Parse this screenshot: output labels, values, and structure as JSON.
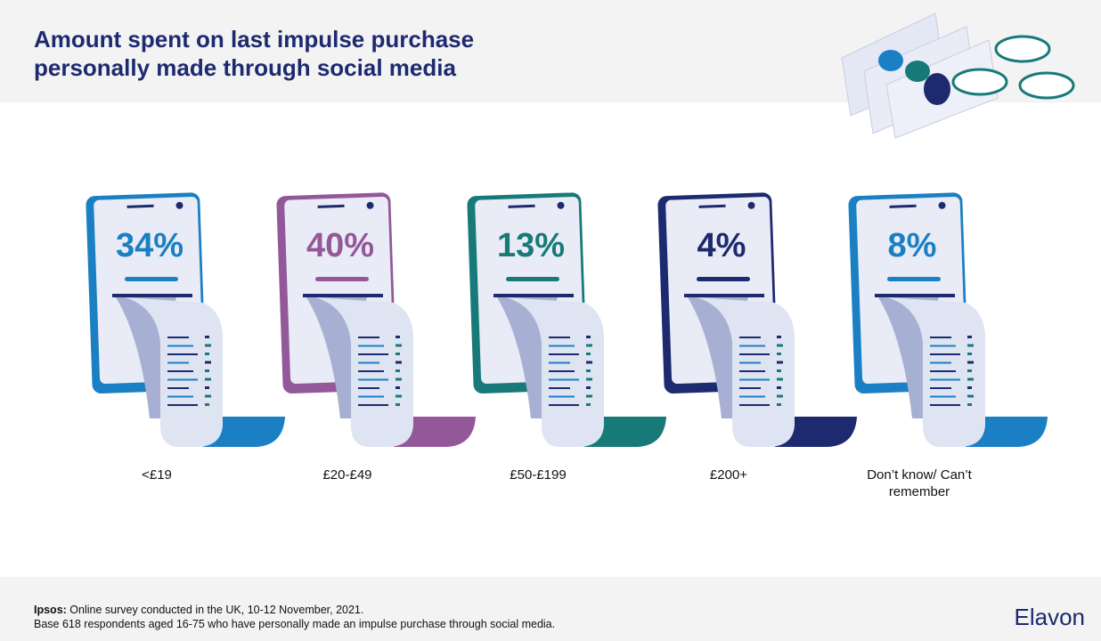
{
  "chart_data": {
    "type": "pictogram",
    "title": "Amount spent on last impulse purchase personally made through social media",
    "categories": [
      "<£19",
      "£20-£49",
      "£50-£199",
      "£200+",
      "Don’t know/ Can’t remember"
    ],
    "values": [
      34,
      40,
      13,
      4,
      8
    ],
    "value_labels": [
      "34%",
      "40%",
      "13%",
      "4%",
      "8%"
    ],
    "colors": [
      "#1b7fc3",
      "#93589a",
      "#187a78",
      "#1d2a6f",
      "#1b7fc3"
    ]
  },
  "footer": {
    "source_label": "Ipsos:",
    "source": "Online survey conducted in the UK, 10-12 November, 2021.",
    "base": "Base 618 respondents aged 16-75 who have personally made an impulse purchase through social media.",
    "logo": "Elavon"
  }
}
